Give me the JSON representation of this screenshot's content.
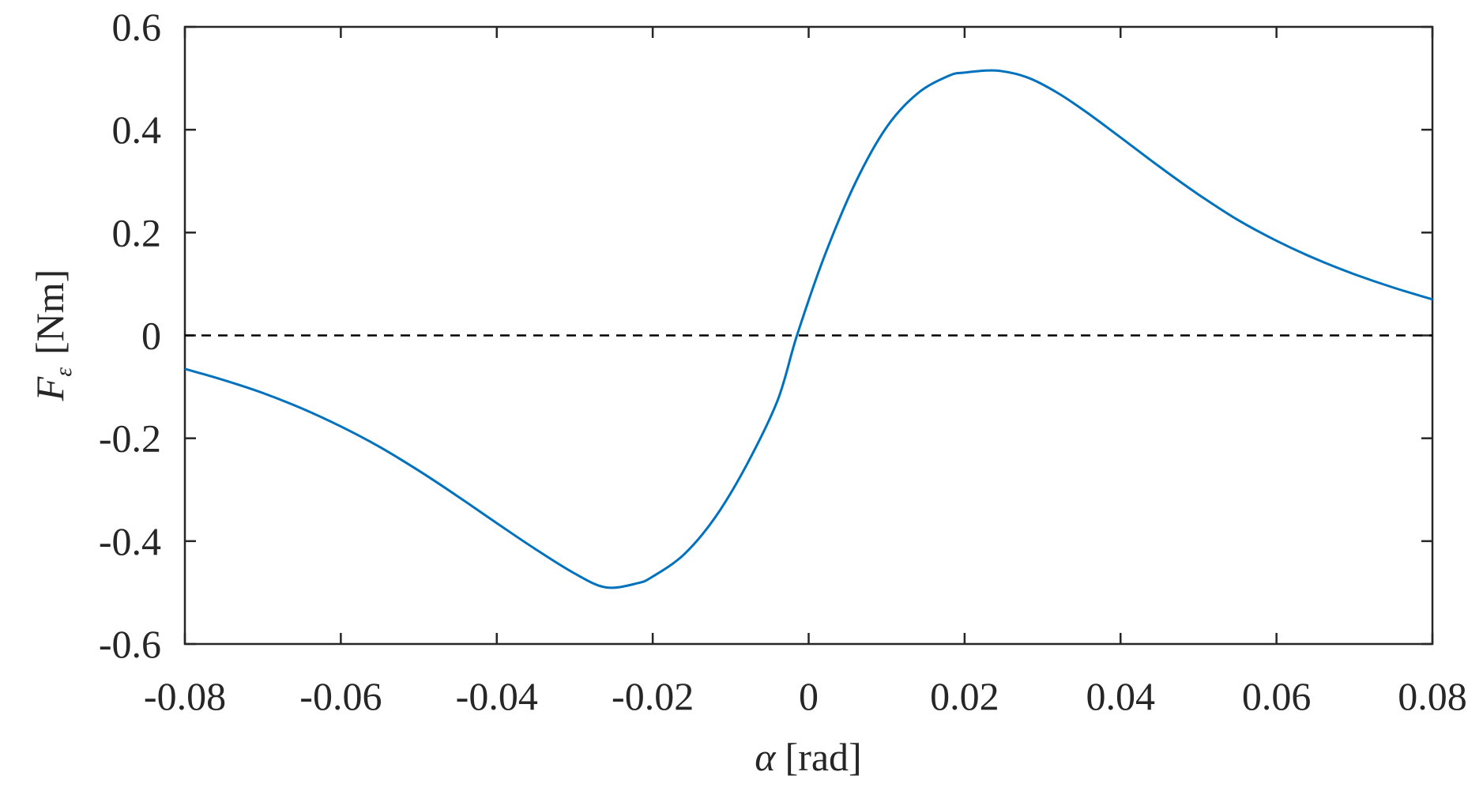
{
  "chart_data": {
    "type": "line",
    "xlabel_symbol": "α",
    "xlabel_unit": "[rad]",
    "ylabel_symbol": "F",
    "ylabel_subscript": "ε",
    "ylabel_unit": "[Nm]",
    "xlim": [
      -0.08,
      0.08
    ],
    "ylim": [
      -0.6,
      0.6
    ],
    "xticks": [
      -0.08,
      -0.06,
      -0.04,
      -0.02,
      0,
      0.02,
      0.04,
      0.06,
      0.08
    ],
    "xtick_labels": [
      "-0.08",
      "-0.06",
      "-0.04",
      "-0.02",
      "0",
      "0.02",
      "0.04",
      "0.06",
      "0.08"
    ],
    "yticks": [
      -0.6,
      -0.4,
      -0.2,
      0,
      0.2,
      0.4,
      0.6
    ],
    "ytick_labels": [
      "-0.6",
      "-0.4",
      "-0.2",
      "0",
      "0.2",
      "0.4",
      "0.6"
    ],
    "grid": false,
    "reference_line": {
      "y": 0,
      "style": "dashed",
      "color": "#000000"
    },
    "series": [
      {
        "color": "#0072BD",
        "x": [
          -0.08,
          -0.075,
          -0.07,
          -0.065,
          -0.06,
          -0.055,
          -0.05,
          -0.045,
          -0.04,
          -0.035,
          -0.03,
          -0.026,
          -0.022,
          -0.02,
          -0.016,
          -0.012,
          -0.008,
          -0.004,
          -0.0015,
          0.002,
          0.006,
          0.01,
          0.014,
          0.018,
          0.02,
          0.024,
          0.028,
          0.032,
          0.036,
          0.04,
          0.045,
          0.05,
          0.055,
          0.06,
          0.065,
          0.07,
          0.075,
          0.08
        ],
        "y": [
          -0.065,
          -0.087,
          -0.112,
          -0.142,
          -0.177,
          -0.217,
          -0.263,
          -0.313,
          -0.365,
          -0.416,
          -0.463,
          -0.49,
          -0.482,
          -0.469,
          -0.426,
          -0.354,
          -0.253,
          -0.127,
          0.0,
          0.153,
          0.297,
          0.405,
          0.471,
          0.505,
          0.511,
          0.515,
          0.502,
          0.471,
          0.43,
          0.385,
          0.328,
          0.274,
          0.225,
          0.184,
          0.149,
          0.119,
          0.093,
          0.07
        ]
      }
    ]
  }
}
